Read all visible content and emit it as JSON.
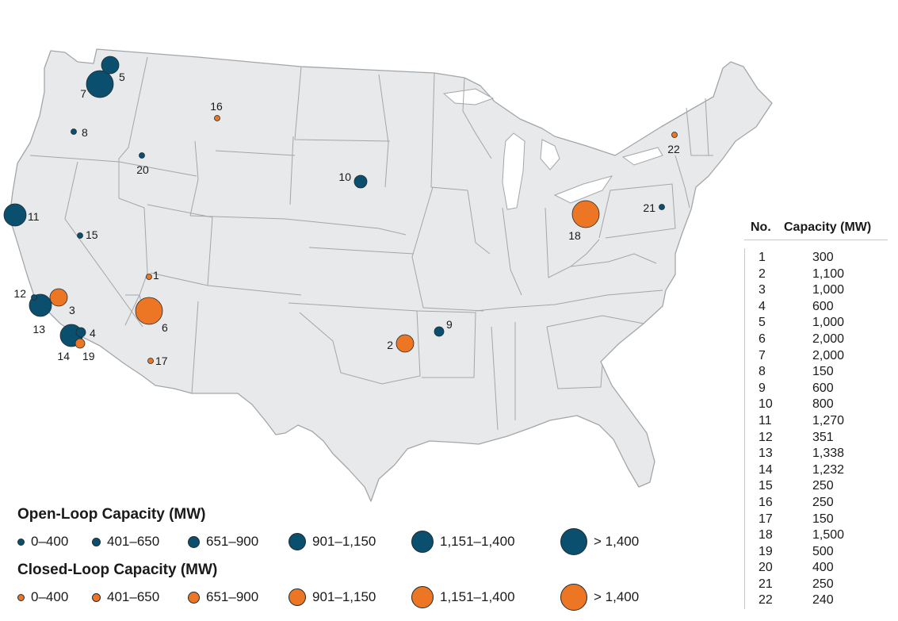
{
  "colors": {
    "open_loop": "#0a4f6e",
    "closed_loop": "#ec7623",
    "land": "#e8e9ea",
    "border": "#a3a6a9",
    "dot_outline": "#1e2b33"
  },
  "sites": [
    {
      "no": "1",
      "type": "closed"
    },
    {
      "no": "2",
      "type": "closed"
    },
    {
      "no": "3",
      "type": "closed"
    },
    {
      "no": "4",
      "type": "open"
    },
    {
      "no": "5",
      "type": "open"
    },
    {
      "no": "6",
      "type": "closed"
    },
    {
      "no": "7",
      "type": "open"
    },
    {
      "no": "8",
      "type": "open"
    },
    {
      "no": "9",
      "type": "open"
    },
    {
      "no": "10",
      "type": "open"
    },
    {
      "no": "11",
      "type": "open"
    },
    {
      "no": "12",
      "type": "open"
    },
    {
      "no": "13",
      "type": "open"
    },
    {
      "no": "14",
      "type": "open"
    },
    {
      "no": "15",
      "type": "open"
    },
    {
      "no": "16",
      "type": "closed"
    },
    {
      "no": "17",
      "type": "closed"
    },
    {
      "no": "18",
      "type": "closed"
    },
    {
      "no": "19",
      "type": "closed"
    },
    {
      "no": "20",
      "type": "open"
    },
    {
      "no": "21",
      "type": "open"
    },
    {
      "no": "22",
      "type": "closed"
    }
  ],
  "legend": {
    "open_title": "Open-Loop Capacity (MW)",
    "closed_title": "Closed-Loop Capacity (MW)",
    "ranges": [
      "0–400",
      "401–650",
      "651–900",
      "901–1,150",
      "1,151–1,400",
      "> 1,400"
    ]
  },
  "table": {
    "col_no": "No.",
    "col_capacity": "Capacity (MW)",
    "rows": [
      {
        "no": "1",
        "capacity": "300"
      },
      {
        "no": "2",
        "capacity": "1,100"
      },
      {
        "no": "3",
        "capacity": "1,000"
      },
      {
        "no": "4",
        "capacity": "600"
      },
      {
        "no": "5",
        "capacity": "1,000"
      },
      {
        "no": "6",
        "capacity": "2,000"
      },
      {
        "no": "7",
        "capacity": "2,000"
      },
      {
        "no": "8",
        "capacity": "150"
      },
      {
        "no": "9",
        "capacity": "600"
      },
      {
        "no": "10",
        "capacity": "800"
      },
      {
        "no": "11",
        "capacity": "1,270"
      },
      {
        "no": "12",
        "capacity": "351"
      },
      {
        "no": "13",
        "capacity": "1,338"
      },
      {
        "no": "14",
        "capacity": "1,232"
      },
      {
        "no": "15",
        "capacity": "250"
      },
      {
        "no": "16",
        "capacity": "250"
      },
      {
        "no": "17",
        "capacity": "150"
      },
      {
        "no": "18",
        "capacity": "1,500"
      },
      {
        "no": "19",
        "capacity": "500"
      },
      {
        "no": "20",
        "capacity": "400"
      },
      {
        "no": "21",
        "capacity": "250"
      },
      {
        "no": "22",
        "capacity": "240"
      }
    ]
  }
}
